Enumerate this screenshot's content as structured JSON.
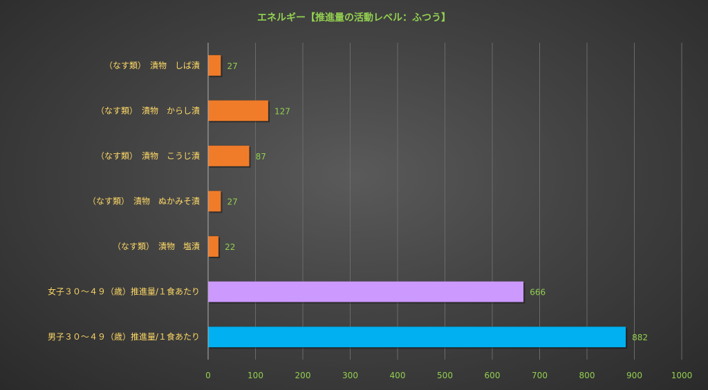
{
  "chart_data": {
    "type": "bar",
    "orientation": "horizontal",
    "title": "エネルギー【推進量の活動レベル：ふつう】",
    "categories": [
      "（なす類）　漬物　しば漬",
      "（なす類）　漬物　からし漬",
      "（なす類）　漬物　こうじ漬",
      "（なす類）　漬物　ぬかみそ漬",
      "（なす類）　漬物　塩漬",
      "女子３０～４９（歳）推進量/１食あたり",
      "男子３０～４９（歳）推進量/１食あたり"
    ],
    "values": [
      27,
      127,
      87,
      27,
      22,
      666,
      882
    ],
    "value_labels": [
      "27",
      "127",
      "87",
      "27",
      "22",
      "666",
      "882"
    ],
    "bar_colors": [
      "#f07c2a",
      "#f07c2a",
      "#f07c2a",
      "#f07c2a",
      "#f07c2a",
      "#cc99ff",
      "#00b0f0"
    ],
    "xlim": [
      0,
      1000
    ],
    "xticks": [
      0,
      100,
      200,
      300,
      400,
      500,
      600,
      700,
      800,
      900,
      1000
    ],
    "xtick_labels": [
      "0",
      "100",
      "200",
      "300",
      "400",
      "500",
      "600",
      "700",
      "800",
      "900",
      "1000"
    ],
    "grid": true,
    "legend": "none",
    "colors": {
      "title": "#92d050",
      "category_text": "#ffd966",
      "tick_text": "#92d050",
      "data_label_text": "#92d050"
    }
  }
}
